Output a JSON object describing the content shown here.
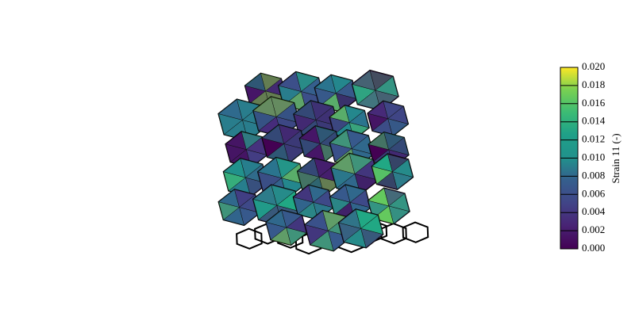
{
  "colorbar": {
    "label": "Strain 11 (-)",
    "range": [
      0,
      0.02
    ],
    "ticks": [
      {
        "value": 0,
        "label": "0.000"
      },
      {
        "value": 0.002,
        "label": "0.002"
      },
      {
        "value": 0.004,
        "label": "0.004"
      },
      {
        "value": 0.006,
        "label": "0.006"
      },
      {
        "value": 0.008,
        "label": "0.008"
      },
      {
        "value": 0.01,
        "label": "0.010"
      },
      {
        "value": 0.012,
        "label": "0.012"
      },
      {
        "value": 0.014,
        "label": "0.014"
      },
      {
        "value": 0.016,
        "label": "0.016"
      },
      {
        "value": 0.018,
        "label": "0.018"
      },
      {
        "value": 0.02,
        "label": "0.020"
      }
    ]
  }
}
